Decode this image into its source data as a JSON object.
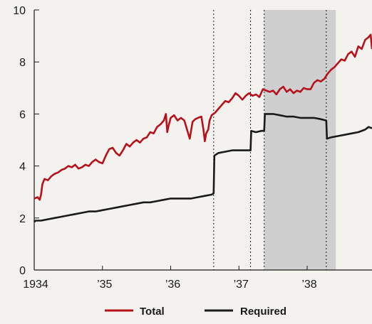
{
  "chart_data": {
    "type": "line",
    "title": "",
    "xlabel": "",
    "ylabel": "",
    "x_range": [
      1934.0,
      1938.95
    ],
    "ylim": [
      0,
      10
    ],
    "y_ticks": [
      0,
      2,
      4,
      6,
      8,
      10
    ],
    "y_tick_labels": [
      "0",
      "2",
      "4",
      "6",
      "8",
      "10"
    ],
    "x_ticks": [
      1934,
      1935,
      1936,
      1937,
      1938
    ],
    "x_tick_labels": [
      "1934",
      "’35",
      "’36",
      "’37",
      "’38"
    ],
    "grid": false,
    "legend_position": "bottom-center",
    "vertical_markers": [
      1936.63,
      1937.17,
      1937.37,
      1938.28
    ],
    "shaded_periods": [
      [
        1937.37,
        1938.42
      ]
    ],
    "series": [
      {
        "name": "Total",
        "color": "#b5121b",
        "points": [
          [
            1934.0,
            2.75
          ],
          [
            1934.05,
            2.8
          ],
          [
            1934.08,
            2.7
          ],
          [
            1934.1,
            2.9
          ],
          [
            1934.12,
            3.3
          ],
          [
            1934.15,
            3.5
          ],
          [
            1934.2,
            3.45
          ],
          [
            1934.25,
            3.6
          ],
          [
            1934.3,
            3.7
          ],
          [
            1934.35,
            3.75
          ],
          [
            1934.4,
            3.85
          ],
          [
            1934.45,
            3.9
          ],
          [
            1934.5,
            4.0
          ],
          [
            1934.55,
            3.95
          ],
          [
            1934.6,
            4.05
          ],
          [
            1934.65,
            3.9
          ],
          [
            1934.7,
            3.95
          ],
          [
            1934.75,
            4.05
          ],
          [
            1934.8,
            4.0
          ],
          [
            1934.85,
            4.15
          ],
          [
            1934.9,
            4.25
          ],
          [
            1934.95,
            4.15
          ],
          [
            1935.0,
            4.1
          ],
          [
            1935.05,
            4.4
          ],
          [
            1935.1,
            4.65
          ],
          [
            1935.15,
            4.7
          ],
          [
            1935.2,
            4.5
          ],
          [
            1935.25,
            4.4
          ],
          [
            1935.3,
            4.6
          ],
          [
            1935.35,
            4.85
          ],
          [
            1935.4,
            4.75
          ],
          [
            1935.45,
            4.9
          ],
          [
            1935.5,
            5.0
          ],
          [
            1935.55,
            4.9
          ],
          [
            1935.6,
            5.05
          ],
          [
            1935.65,
            5.1
          ],
          [
            1935.7,
            5.3
          ],
          [
            1935.75,
            5.25
          ],
          [
            1935.8,
            5.5
          ],
          [
            1935.85,
            5.6
          ],
          [
            1935.9,
            5.75
          ],
          [
            1935.93,
            6.0
          ],
          [
            1935.95,
            5.3
          ],
          [
            1935.97,
            5.55
          ],
          [
            1936.0,
            5.85
          ],
          [
            1936.05,
            5.95
          ],
          [
            1936.1,
            5.75
          ],
          [
            1936.15,
            5.85
          ],
          [
            1936.2,
            5.75
          ],
          [
            1936.25,
            5.3
          ],
          [
            1936.28,
            5.05
          ],
          [
            1936.32,
            5.7
          ],
          [
            1936.36,
            5.8
          ],
          [
            1936.4,
            5.85
          ],
          [
            1936.45,
            5.9
          ],
          [
            1936.48,
            5.4
          ],
          [
            1936.5,
            4.95
          ],
          [
            1936.52,
            5.25
          ],
          [
            1936.55,
            5.4
          ],
          [
            1936.57,
            5.75
          ],
          [
            1936.6,
            5.95
          ],
          [
            1936.65,
            6.05
          ],
          [
            1936.7,
            6.2
          ],
          [
            1936.75,
            6.35
          ],
          [
            1936.8,
            6.5
          ],
          [
            1936.85,
            6.45
          ],
          [
            1936.9,
            6.6
          ],
          [
            1936.95,
            6.8
          ],
          [
            1937.0,
            6.7
          ],
          [
            1937.05,
            6.55
          ],
          [
            1937.1,
            6.7
          ],
          [
            1937.15,
            6.8
          ],
          [
            1937.2,
            6.7
          ],
          [
            1937.25,
            6.75
          ],
          [
            1937.3,
            6.65
          ],
          [
            1937.35,
            6.95
          ],
          [
            1937.4,
            6.9
          ],
          [
            1937.45,
            6.85
          ],
          [
            1937.5,
            6.9
          ],
          [
            1937.55,
            6.75
          ],
          [
            1937.6,
            6.95
          ],
          [
            1937.65,
            7.05
          ],
          [
            1937.7,
            6.85
          ],
          [
            1937.75,
            6.95
          ],
          [
            1937.8,
            6.8
          ],
          [
            1937.85,
            6.9
          ],
          [
            1937.9,
            6.85
          ],
          [
            1937.95,
            7.0
          ],
          [
            1938.0,
            6.95
          ],
          [
            1938.05,
            6.95
          ],
          [
            1938.1,
            7.2
          ],
          [
            1938.15,
            7.3
          ],
          [
            1938.2,
            7.25
          ],
          [
            1938.25,
            7.35
          ],
          [
            1938.3,
            7.55
          ],
          [
            1938.35,
            7.7
          ],
          [
            1938.4,
            7.8
          ],
          [
            1938.45,
            7.95
          ],
          [
            1938.5,
            8.1
          ],
          [
            1938.55,
            8.05
          ],
          [
            1938.6,
            8.3
          ],
          [
            1938.65,
            8.4
          ],
          [
            1938.7,
            8.2
          ],
          [
            1938.75,
            8.6
          ],
          [
            1938.8,
            8.5
          ],
          [
            1938.85,
            8.85
          ],
          [
            1938.9,
            8.95
          ],
          [
            1938.93,
            9.05
          ],
          [
            1938.95,
            8.5
          ]
        ]
      },
      {
        "name": "Required",
        "color": "#1a1a1a",
        "points": [
          [
            1934.0,
            1.85
          ],
          [
            1934.02,
            1.9
          ],
          [
            1934.1,
            1.9
          ],
          [
            1934.2,
            1.95
          ],
          [
            1934.3,
            2.0
          ],
          [
            1934.4,
            2.05
          ],
          [
            1934.5,
            2.1
          ],
          [
            1934.6,
            2.15
          ],
          [
            1934.7,
            2.2
          ],
          [
            1934.8,
            2.25
          ],
          [
            1934.9,
            2.25
          ],
          [
            1935.0,
            2.3
          ],
          [
            1935.1,
            2.35
          ],
          [
            1935.2,
            2.4
          ],
          [
            1935.3,
            2.45
          ],
          [
            1935.4,
            2.5
          ],
          [
            1935.5,
            2.55
          ],
          [
            1935.6,
            2.6
          ],
          [
            1935.7,
            2.6
          ],
          [
            1935.8,
            2.65
          ],
          [
            1935.9,
            2.7
          ],
          [
            1936.0,
            2.75
          ],
          [
            1936.1,
            2.75
          ],
          [
            1936.2,
            2.75
          ],
          [
            1936.3,
            2.75
          ],
          [
            1936.4,
            2.8
          ],
          [
            1936.5,
            2.85
          ],
          [
            1936.6,
            2.9
          ],
          [
            1936.63,
            2.95
          ],
          [
            1936.64,
            4.4
          ],
          [
            1936.7,
            4.5
          ],
          [
            1936.8,
            4.55
          ],
          [
            1936.9,
            4.6
          ],
          [
            1937.0,
            4.6
          ],
          [
            1937.1,
            4.6
          ],
          [
            1937.17,
            4.6
          ],
          [
            1937.18,
            5.35
          ],
          [
            1937.25,
            5.3
          ],
          [
            1937.33,
            5.35
          ],
          [
            1937.37,
            5.35
          ],
          [
            1937.38,
            6.0
          ],
          [
            1937.5,
            6.0
          ],
          [
            1937.6,
            5.95
          ],
          [
            1937.7,
            5.9
          ],
          [
            1937.8,
            5.9
          ],
          [
            1937.9,
            5.85
          ],
          [
            1938.0,
            5.85
          ],
          [
            1938.1,
            5.85
          ],
          [
            1938.2,
            5.8
          ],
          [
            1938.28,
            5.75
          ],
          [
            1938.29,
            5.05
          ],
          [
            1938.35,
            5.1
          ],
          [
            1938.45,
            5.15
          ],
          [
            1938.55,
            5.2
          ],
          [
            1938.65,
            5.25
          ],
          [
            1938.75,
            5.3
          ],
          [
            1938.85,
            5.4
          ],
          [
            1938.9,
            5.5
          ],
          [
            1938.95,
            5.45
          ]
        ]
      }
    ]
  }
}
